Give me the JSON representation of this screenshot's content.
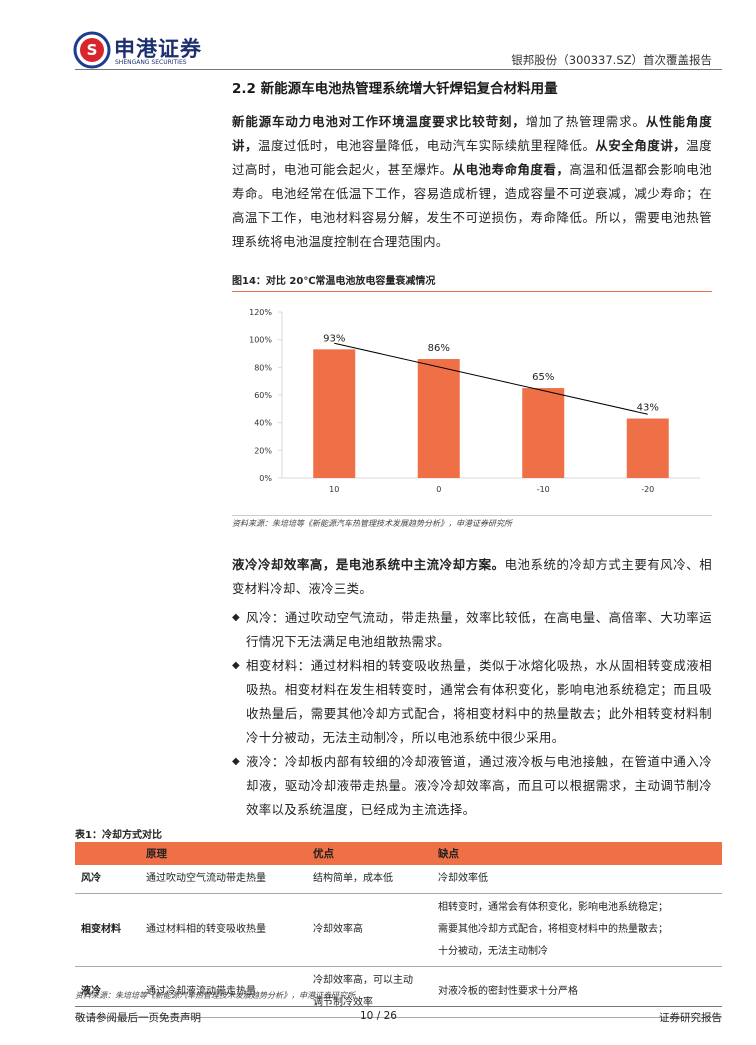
{
  "header": {
    "brand": "申港证券",
    "brand_en": "SHENGANG SECURITIES",
    "report": "银邦股份（300337.SZ）首次覆盖报告"
  },
  "section_title": "2.2 新能源车电池热管理系统增大钎焊铝复合材料用量",
  "paragraphs": [
    {
      "runs": [
        {
          "text": "新能源车动力电池对工作环境温度要求比较苛刻，",
          "bold": true
        },
        {
          "text": "增加了热管理需求。",
          "bold": false
        },
        {
          "text": "从性能角度讲，",
          "bold": true
        },
        {
          "text": "温度过低时，电池容量降低，电动汽车实际续航里程降低。",
          "bold": false
        },
        {
          "text": "从安全角度讲，",
          "bold": true
        },
        {
          "text": "温度过高时，电池可能会起火，甚至爆炸。",
          "bold": false
        },
        {
          "text": "从电池寿命角度看，",
          "bold": true
        },
        {
          "text": "高温和低温都会影响电池寿命。电池经常在低温下工作，容易造成析锂，造成容量不可逆衰减，减少寿命；在高温下工作，电池材料容易分解，发生不可逆损伤，寿命降低。所以，需要电池热管理系统将电池温度控制在合理范围内。",
          "bold": false
        }
      ]
    },
    {
      "runs": [
        {
          "text": "液冷冷却效率高，是电池系统中主流冷却方案。",
          "bold": true
        },
        {
          "text": "电池系统的冷却方式主要有风冷、相变材料冷却、液冷三类。",
          "bold": false
        }
      ]
    }
  ],
  "chart_data": {
    "type": "bar",
    "title": "图14：对比 20℃常温电池放电容量衰减情况",
    "categories": [
      "10",
      "0",
      "-10",
      "-20"
    ],
    "values": [
      93,
      86,
      65,
      43
    ],
    "value_labels": [
      "93%",
      "86%",
      "65%",
      "43%"
    ],
    "color": "#ef6f47",
    "trendline": true,
    "ylim": [
      0,
      120
    ],
    "yticks": [
      {
        "value": 0,
        "label": "0%"
      },
      {
        "value": 20,
        "label": "20%"
      },
      {
        "value": 40,
        "label": "40%"
      },
      {
        "value": 60,
        "label": "60%"
      },
      {
        "value": 80,
        "label": "80%"
      },
      {
        "value": 100,
        "label": "100%"
      },
      {
        "value": 120,
        "label": "120%"
      }
    ],
    "source": "资料来源：朱培培等《新能源汽车热管理技术发展趋势分析》，申港证券研究所"
  },
  "bullets": [
    "风冷：通过吹动空气流动，带走热量，效率比较低，在高电量、高倍率、大功率运行情况下无法满足电池组散热需求。",
    "相变材料：通过材料相的转变吸收热量，类似于冰熔化吸热，水从固相转变成液相吸热。相变材料在发生相转变时，通常会有体积变化，影响电池系统稳定；而且吸收热量后，需要其他冷却方式配合，将相变材料中的热量散去；此外相转变材料制冷十分被动，无法主动制冷，所以电池系统中很少采用。",
    "液冷：冷却板内部有较细的冷却液管道，通过液冷板与电池接触，在管道中通入冷却液，驱动冷却液带走热量。液冷冷却效率高，而且可以根据需求，主动调节制冷效率以及系统温度，已经成为主流选择。"
  ],
  "table": {
    "title": "表1：冷却方式对比",
    "header": [
      "原理",
      "优点",
      "缺点"
    ],
    "rows": [
      [
        "风冷",
        "通过吹动空气流动带走热量",
        "结构简单，成本低",
        "冷却效率低"
      ],
      [
        "相变材料",
        "通过材料相的转变吸收热量",
        "冷却效率高",
        [
          "相转变时，通常会有体积变化，影响电池系统稳定；",
          "需要其他冷却方式配合，将相变材料中的热量散去；",
          "十分被动，无法主动制冷"
        ]
      ],
      [
        "液冷",
        "通过冷却液流动带走热量",
        [
          "冷却效率高，可以主动",
          "调节制冷效率"
        ],
        "对液冷板的密封性要求十分严格"
      ]
    ],
    "source": "资料来源：朱培培等《新能源汽车热管理技术发展趋势分析》，申港证券研究所"
  },
  "footer": {
    "disclaimer": "敬请参阅最后一页免责声明",
    "page": "10 / 26",
    "type": "证券研究报告"
  }
}
